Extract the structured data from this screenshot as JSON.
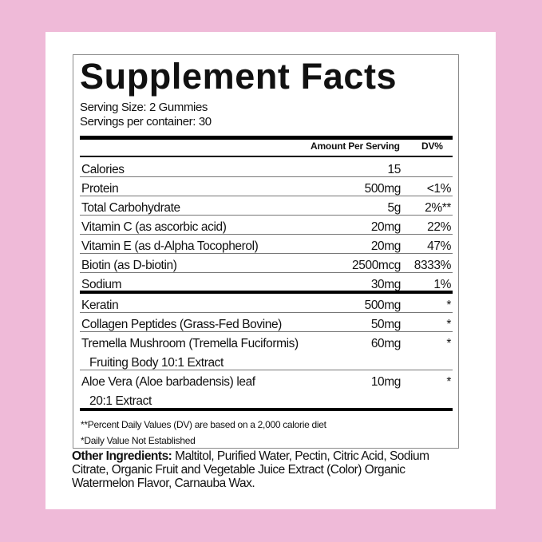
{
  "colors": {
    "background": "#efbad8",
    "panel": "#ffffff",
    "text": "#111111"
  },
  "title": "Supplement Facts",
  "serving_size": "Serving Size: 2 Gummies",
  "servings_per_container": "Servings per container: 30",
  "header": {
    "amount": "Amount Per Serving",
    "dv": "DV%"
  },
  "rows": [
    {
      "name": "Calories",
      "amount": "15",
      "dv": ""
    },
    {
      "name": "Protein",
      "amount": "500mg",
      "dv": "<1%"
    },
    {
      "name": "Total Carbohydrate",
      "amount": "5g",
      "dv": "2%**"
    },
    {
      "name": "Vitamin C (as ascorbic acid)",
      "amount": "20mg",
      "dv": "22%"
    },
    {
      "name": "Vitamin E (as d-Alpha Tocopherol)",
      "amount": "20mg",
      "dv": "47%"
    },
    {
      "name": "Biotin (as D-biotin)",
      "amount": "2500mcg",
      "dv": "8333%"
    },
    {
      "name": "Sodium",
      "amount": "30mg",
      "dv": "1%"
    },
    {
      "name": "Keratin",
      "amount": "500mg",
      "dv": "*"
    },
    {
      "name": "Collagen Peptides (Grass-Fed Bovine)",
      "amount": "50mg",
      "dv": "*"
    },
    {
      "name": "Tremella Mushroom (Tremella Fuciformis)",
      "name2": "Fruiting Body 10:1 Extract",
      "amount": "60mg",
      "dv": "*"
    },
    {
      "name": "Aloe Vera (Aloe barbadensis) leaf",
      "name2": "20:1 Extract",
      "amount": "10mg",
      "dv": "*"
    }
  ],
  "footnotes": [
    "**Percent Daily Values (DV) are based on a 2,000 calorie diet",
    "*Daily Value Not Established"
  ],
  "other_ingredients": {
    "label": "Other Ingredients:",
    "text": " Maltitol, Purified Water, Pectin, Citric Acid, Sodium Citrate, Organic Fruit and Vegetable Juice Extract (Color) Organic Watermelon Flavor, Carnauba Wax."
  }
}
